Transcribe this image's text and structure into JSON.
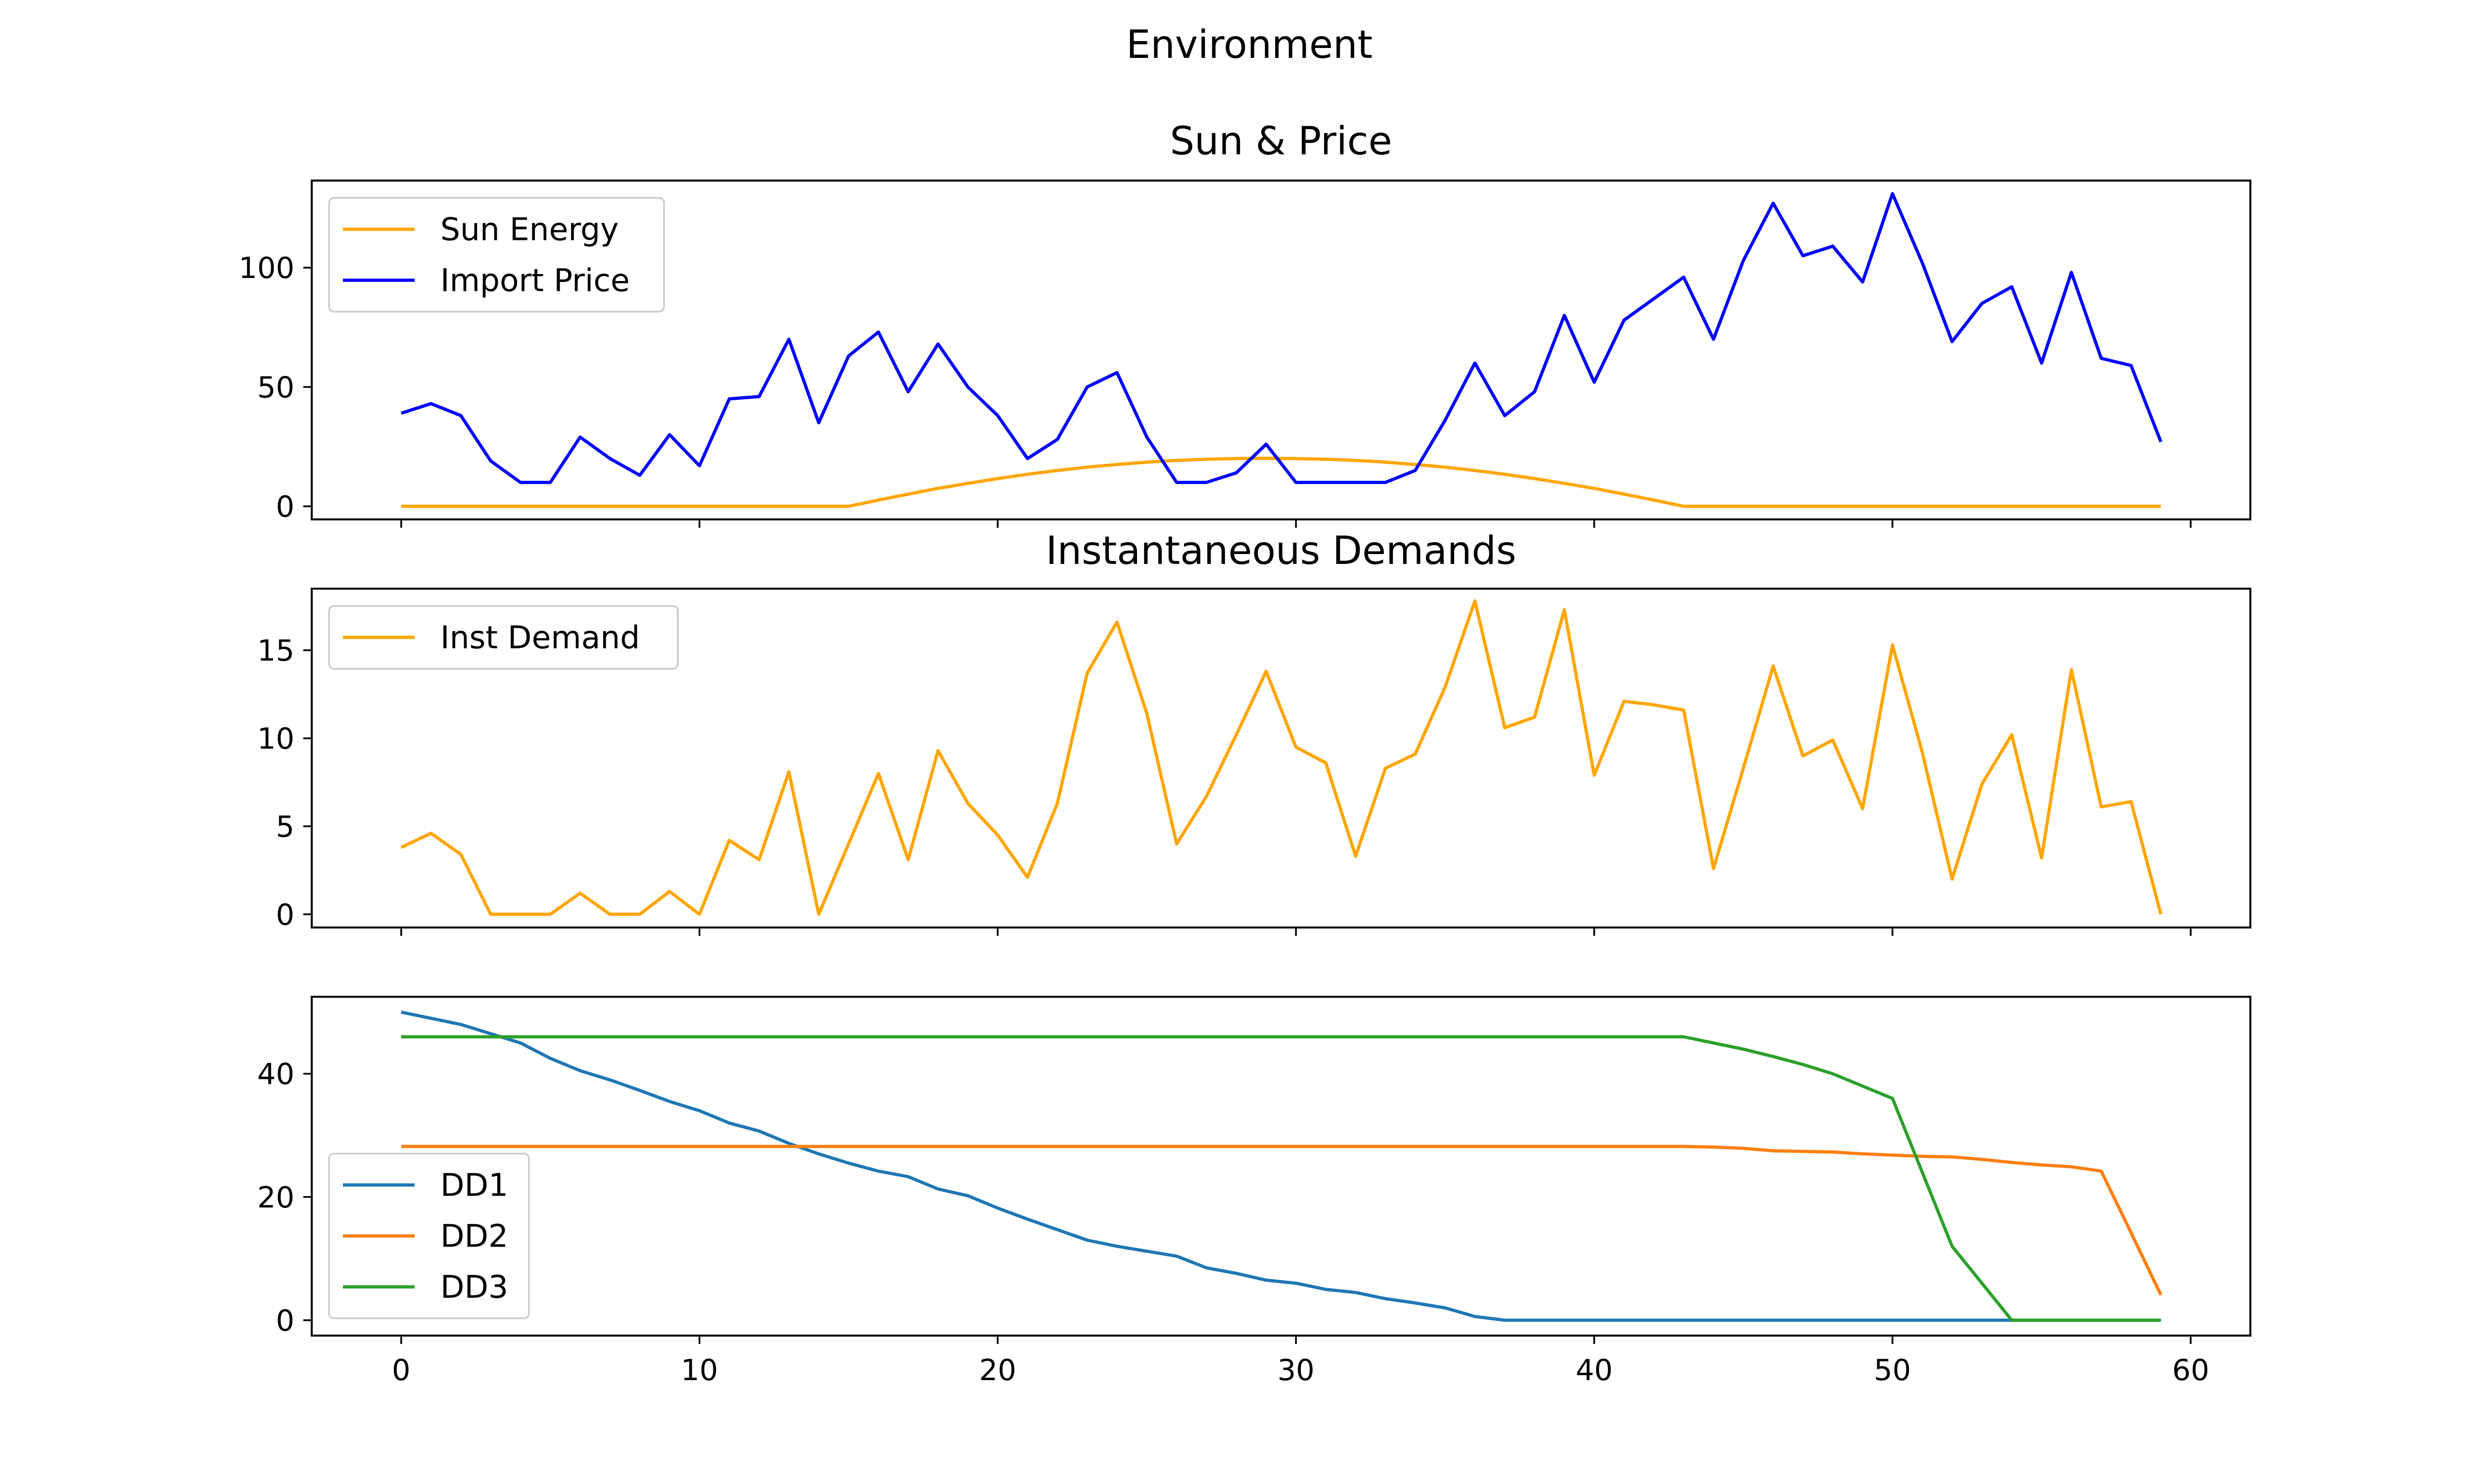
{
  "figure": {
    "suptitle": "Environment"
  },
  "chart_data": [
    {
      "type": "line",
      "title": "Sun & Price",
      "xlim": [
        -3,
        62
      ],
      "ylim": [
        -5.5,
        136.5
      ],
      "yticks": [
        0,
        50,
        100
      ],
      "xticks": [
        0,
        10,
        20,
        30,
        40,
        50,
        60
      ],
      "show_xticklabels": false,
      "legend": "upper left",
      "x": [
        0,
        1,
        2,
        3,
        4,
        5,
        6,
        7,
        8,
        9,
        10,
        11,
        12,
        13,
        14,
        15,
        16,
        17,
        18,
        19,
        20,
        21,
        22,
        23,
        24,
        25,
        26,
        27,
        28,
        29,
        30,
        31,
        32,
        33,
        34,
        35,
        36,
        37,
        38,
        39,
        40,
        41,
        42,
        43,
        44,
        45,
        46,
        47,
        48,
        49,
        50,
        51,
        52,
        53,
        54,
        55,
        56,
        57,
        58,
        59
      ],
      "series": [
        {
          "name": "Sun Energy",
          "color": "#FFA500",
          "values": [
            0,
            0,
            0,
            0,
            0,
            0,
            0,
            0,
            0,
            0,
            0,
            0,
            0,
            0,
            0,
            0,
            2.6,
            5.1,
            7.5,
            9.6,
            11.6,
            13.4,
            15,
            16.4,
            17.5,
            18.5,
            19.2,
            19.7,
            20,
            20.1,
            20,
            19.7,
            19.2,
            18.5,
            17.5,
            16.4,
            15,
            13.4,
            11.6,
            9.6,
            7.5,
            5.1,
            2.6,
            0,
            0,
            0,
            0,
            0,
            0,
            0,
            0,
            0,
            0,
            0,
            0,
            0,
            0,
            0,
            0,
            0
          ]
        },
        {
          "name": "Import Price",
          "color": "#0000FF",
          "values": [
            39,
            43,
            38,
            19,
            10,
            10,
            29,
            20,
            13,
            30,
            17,
            45,
            46,
            70,
            35,
            63,
            73,
            48,
            68,
            50,
            38,
            20,
            28,
            50,
            56,
            29,
            10,
            10,
            14,
            26,
            10,
            10,
            10,
            10,
            15,
            36,
            60,
            38,
            48,
            80,
            52,
            78,
            87,
            96,
            70,
            103,
            127,
            105,
            109,
            94,
            131,
            102,
            69,
            85,
            92,
            60,
            98,
            62,
            59,
            27
          ]
        }
      ]
    },
    {
      "type": "line",
      "title": "Instantaneous Demands",
      "xlim": [
        -3,
        62
      ],
      "ylim": [
        -0.75,
        18.5
      ],
      "yticks": [
        0,
        5,
        10,
        15
      ],
      "xticks": [
        0,
        10,
        20,
        30,
        40,
        50,
        60
      ],
      "show_xticklabels": false,
      "legend": "upper left",
      "x": [
        0,
        1,
        2,
        3,
        4,
        5,
        6,
        7,
        8,
        9,
        10,
        11,
        12,
        13,
        14,
        15,
        16,
        17,
        18,
        19,
        20,
        21,
        22,
        23,
        24,
        25,
        26,
        27,
        28,
        29,
        30,
        31,
        32,
        33,
        34,
        35,
        36,
        37,
        38,
        39,
        40,
        41,
        42,
        43,
        44,
        45,
        46,
        47,
        48,
        49,
        50,
        51,
        52,
        53,
        54,
        55,
        56,
        57,
        58,
        59
      ],
      "series": [
        {
          "name": "Inst Demand",
          "color": "#FFA500",
          "values": [
            3.8,
            4.6,
            3.4,
            0,
            0,
            0,
            1.2,
            0,
            0,
            1.3,
            0,
            4.2,
            3.1,
            8.1,
            0,
            4,
            8,
            3.1,
            9.3,
            6.3,
            4.5,
            2.1,
            6.3,
            13.7,
            16.6,
            11.4,
            4,
            6.7,
            10.2,
            13.8,
            9.5,
            8.6,
            3.3,
            8.3,
            9.1,
            12.9,
            17.8,
            10.6,
            11.2,
            17.3,
            7.9,
            12.1,
            11.9,
            11.6,
            2.6,
            8.3,
            14.1,
            9,
            9.9,
            6,
            15.3,
            9.2,
            2,
            7.4,
            10.2,
            3.2,
            13.9,
            6.1,
            6.4,
            0
          ]
        }
      ]
    },
    {
      "type": "line",
      "title": "",
      "xlim": [
        -3,
        62
      ],
      "ylim": [
        -2.5,
        52.5
      ],
      "yticks": [
        0,
        20,
        40
      ],
      "xticks": [
        0,
        10,
        20,
        30,
        40,
        50,
        60
      ],
      "show_xticklabels": true,
      "legend": "lower left",
      "x": [
        0,
        1,
        2,
        3,
        4,
        5,
        6,
        7,
        8,
        9,
        10,
        11,
        12,
        13,
        14,
        15,
        16,
        17,
        18,
        19,
        20,
        21,
        22,
        23,
        24,
        25,
        26,
        27,
        28,
        29,
        30,
        31,
        32,
        33,
        34,
        35,
        36,
        37,
        38,
        39,
        40,
        41,
        42,
        43,
        44,
        45,
        46,
        47,
        48,
        49,
        50,
        51,
        52,
        53,
        54,
        55,
        56,
        57,
        58,
        59
      ],
      "series": [
        {
          "name": "DD1",
          "color": "#1F77B4",
          "values": [
            50,
            49,
            48,
            46.5,
            45,
            42.5,
            40.5,
            39,
            37.3,
            35.5,
            34,
            32,
            30.7,
            28.7,
            27,
            25.5,
            24.2,
            23.3,
            21.3,
            20.2,
            18.2,
            16.4,
            14.7,
            13,
            12,
            11.2,
            10.4,
            8.5,
            7.6,
            6.5,
            6,
            5,
            4.5,
            3.5,
            2.8,
            2,
            0.6,
            0,
            0,
            0,
            0,
            0,
            0,
            0,
            0,
            0,
            0,
            0,
            0,
            0,
            0,
            0,
            0,
            0,
            0,
            0,
            0,
            0,
            0,
            0
          ]
        },
        {
          "name": "DD2",
          "color": "#FF7F0E",
          "values": [
            28.2,
            28.2,
            28.2,
            28.2,
            28.2,
            28.2,
            28.2,
            28.2,
            28.2,
            28.2,
            28.2,
            28.2,
            28.2,
            28.2,
            28.2,
            28.2,
            28.2,
            28.2,
            28.2,
            28.2,
            28.2,
            28.2,
            28.2,
            28.2,
            28.2,
            28.2,
            28.2,
            28.2,
            28.2,
            28.2,
            28.2,
            28.2,
            28.2,
            28.2,
            28.2,
            28.2,
            28.2,
            28.2,
            28.2,
            28.2,
            28.2,
            28.2,
            28.2,
            28.2,
            28.1,
            27.9,
            27.5,
            27.4,
            27.3,
            27,
            26.8,
            26.6,
            26.5,
            26.1,
            25.6,
            25.2,
            24.9,
            24.2,
            14.2,
            4.1
          ]
        },
        {
          "name": "DD3",
          "color": "#2CA02C",
          "values": [
            46,
            46,
            46,
            46,
            46,
            46,
            46,
            46,
            46,
            46,
            46,
            46,
            46,
            46,
            46,
            46,
            46,
            46,
            46,
            46,
            46,
            46,
            46,
            46,
            46,
            46,
            46,
            46,
            46,
            46,
            46,
            46,
            46,
            46,
            46,
            46,
            46,
            46,
            46,
            46,
            46,
            46,
            46,
            46,
            45,
            44,
            42.8,
            41.5,
            40,
            38,
            36,
            24,
            12,
            6,
            0,
            0,
            0,
            0,
            0,
            0
          ]
        }
      ]
    }
  ]
}
